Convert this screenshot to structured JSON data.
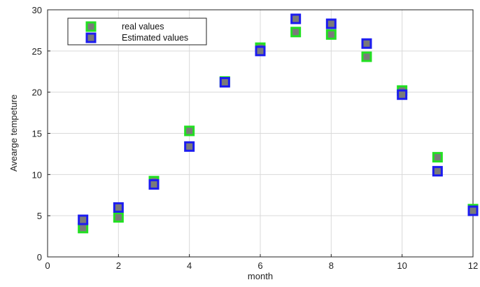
{
  "chart_data": {
    "type": "scatter",
    "title": "",
    "xlabel": "month",
    "ylabel": "Avearge tempeture",
    "xlim": [
      0,
      12
    ],
    "ylim": [
      0,
      30
    ],
    "xticks": [
      0,
      2,
      4,
      6,
      8,
      10,
      12
    ],
    "yticks": [
      0,
      5,
      10,
      15,
      20,
      25,
      30
    ],
    "grid": true,
    "legend_position": "top-left",
    "series": [
      {
        "name": "real values",
        "marker_edge_color": "#22e022",
        "marker_face_color": "#7a7a7a",
        "x": [
          1,
          2,
          3,
          4,
          5,
          6,
          7,
          8,
          9,
          10,
          11,
          12
        ],
        "y": [
          3.5,
          4.8,
          9.2,
          15.3,
          21.3,
          25.4,
          27.3,
          27.0,
          24.3,
          20.2,
          12.1,
          5.8
        ]
      },
      {
        "name": "Estimated values",
        "marker_edge_color": "#1c1cf0",
        "marker_face_color": "#7a7a7a",
        "x": [
          1,
          2,
          3,
          4,
          5,
          6,
          7,
          8,
          9,
          10,
          11,
          12
        ],
        "y": [
          4.5,
          6.0,
          8.8,
          13.4,
          21.2,
          25.0,
          28.9,
          28.3,
          25.9,
          19.7,
          10.4,
          5.6
        ]
      }
    ]
  }
}
